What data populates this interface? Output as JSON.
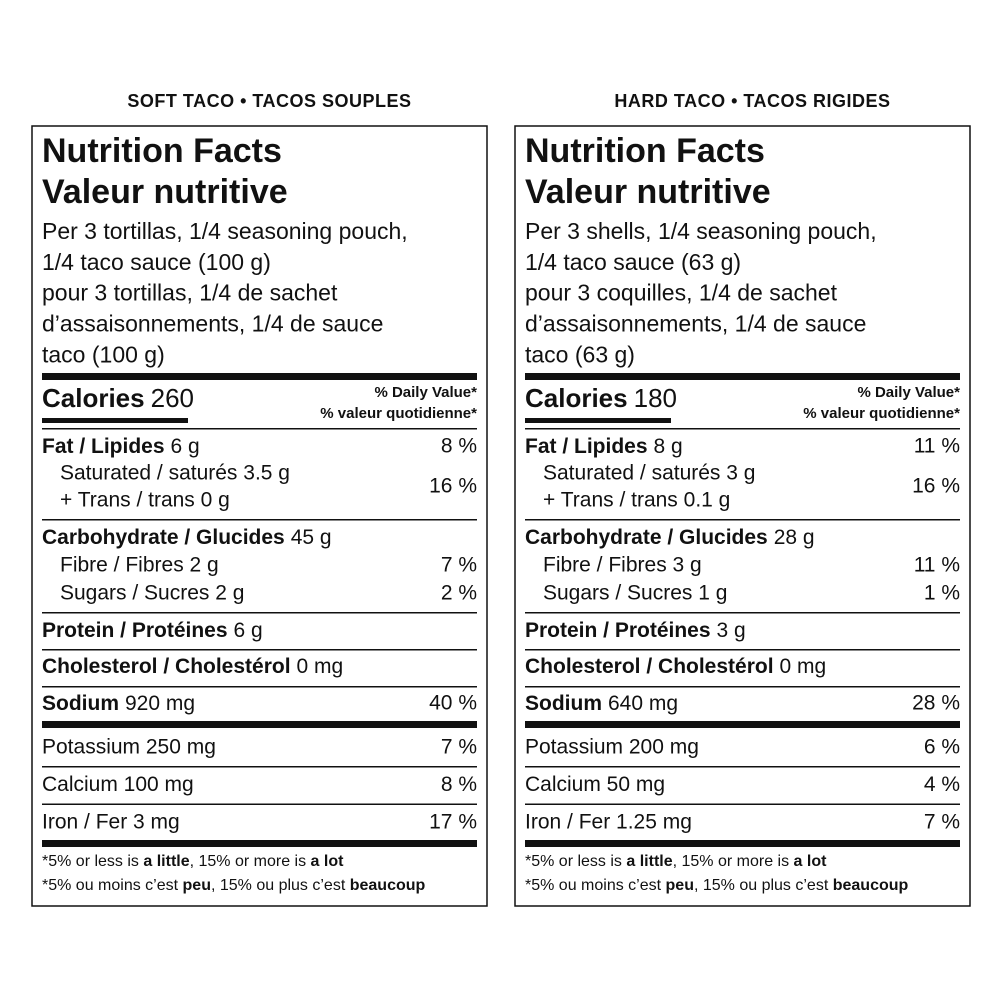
{
  "labels": [
    {
      "heading": "SOFT TACO • TACOS SOUPLES",
      "title": [
        "Nutrition Facts",
        "Valeur nutritive"
      ],
      "serving": [
        "Per 3 tortillas, 1/4 seasoning pouch,",
        "1/4 taco sauce (100 g)",
        "pour 3 tortillas, 1/4 de sachet",
        "d’assaisonnements, 1/4 de sauce",
        "taco (100 g)"
      ],
      "calories": {
        "name": "Calories",
        "amount": "260"
      },
      "dv_header": [
        "% Daily Value*",
        "% valeur quotidienne*"
      ],
      "fat": {
        "name": "Fat / Lipides",
        "amount": "6 g",
        "dv": "8 %",
        "sub": [
          "Saturated / saturés 3.5 g",
          "+ Trans / trans 0 g"
        ],
        "sub_dv": "16 %"
      },
      "carbohydrate": {
        "name": "Carbohydrate / Glucides",
        "amount": "45 g",
        "sub": [
          {
            "text": "Fibre / Fibres 2 g",
            "dv": "7 %"
          },
          {
            "text": "Sugars / Sucres 2 g",
            "dv": "2 %"
          }
        ]
      },
      "protein": {
        "name": "Protein / Protéines",
        "amount": "6 g"
      },
      "cholesterol": {
        "name": "Cholesterol / Cholestérol",
        "amount": "0 mg"
      },
      "sodium": {
        "name": "Sodium",
        "amount": "920 mg",
        "dv": "40 %"
      },
      "minerals": [
        {
          "text": "Potassium 250 mg",
          "dv": "7 %"
        },
        {
          "text": "Calcium 100 mg",
          "dv": "8 %"
        },
        {
          "text": "Iron / Fer 3 mg",
          "dv": "17 %"
        }
      ],
      "footnote": [
        [
          "*5% or less is ",
          "a little",
          ", 15% or more is ",
          "a lot"
        ],
        [
          "*5% ou moins c’est ",
          "peu",
          ", 15% ou plus c’est ",
          "beaucoup"
        ]
      ]
    },
    {
      "heading": "HARD TACO • TACOS RIGIDES",
      "title": [
        "Nutrition Facts",
        "Valeur nutritive"
      ],
      "serving": [
        "Per 3 shells, 1/4 seasoning pouch,",
        "1/4 taco sauce (63 g)",
        "pour 3 coquilles, 1/4 de sachet",
        "d’assaisonnements, 1/4 de sauce",
        "taco (63 g)"
      ],
      "calories": {
        "name": "Calories",
        "amount": "180"
      },
      "dv_header": [
        "% Daily Value*",
        "% valeur quotidienne*"
      ],
      "fat": {
        "name": "Fat / Lipides",
        "amount": "8 g",
        "dv": "11 %",
        "sub": [
          "Saturated / saturés 3 g",
          "+ Trans / trans 0.1 g"
        ],
        "sub_dv": "16 %"
      },
      "carbohydrate": {
        "name": "Carbohydrate / Glucides",
        "amount": "28 g",
        "sub": [
          {
            "text": "Fibre / Fibres 3 g",
            "dv": "11 %"
          },
          {
            "text": "Sugars / Sucres 1 g",
            "dv": "1 %"
          }
        ]
      },
      "protein": {
        "name": "Protein / Protéines",
        "amount": "3 g"
      },
      "cholesterol": {
        "name": "Cholesterol / Cholestérol",
        "amount": "0 mg"
      },
      "sodium": {
        "name": "Sodium",
        "amount": "640 mg",
        "dv": "28 %"
      },
      "minerals": [
        {
          "text": "Potassium 200 mg",
          "dv": "6 %"
        },
        {
          "text": "Calcium 50 mg",
          "dv": "4 %"
        },
        {
          "text": "Iron / Fer 1.25 mg",
          "dv": "7 %"
        }
      ],
      "footnote": [
        [
          "*5% or less is ",
          "a little",
          ", 15% or more is ",
          "a lot"
        ],
        [
          "*5% ou moins c’est ",
          "peu",
          ", 15% ou plus c’est ",
          "beaucoup"
        ]
      ]
    }
  ]
}
